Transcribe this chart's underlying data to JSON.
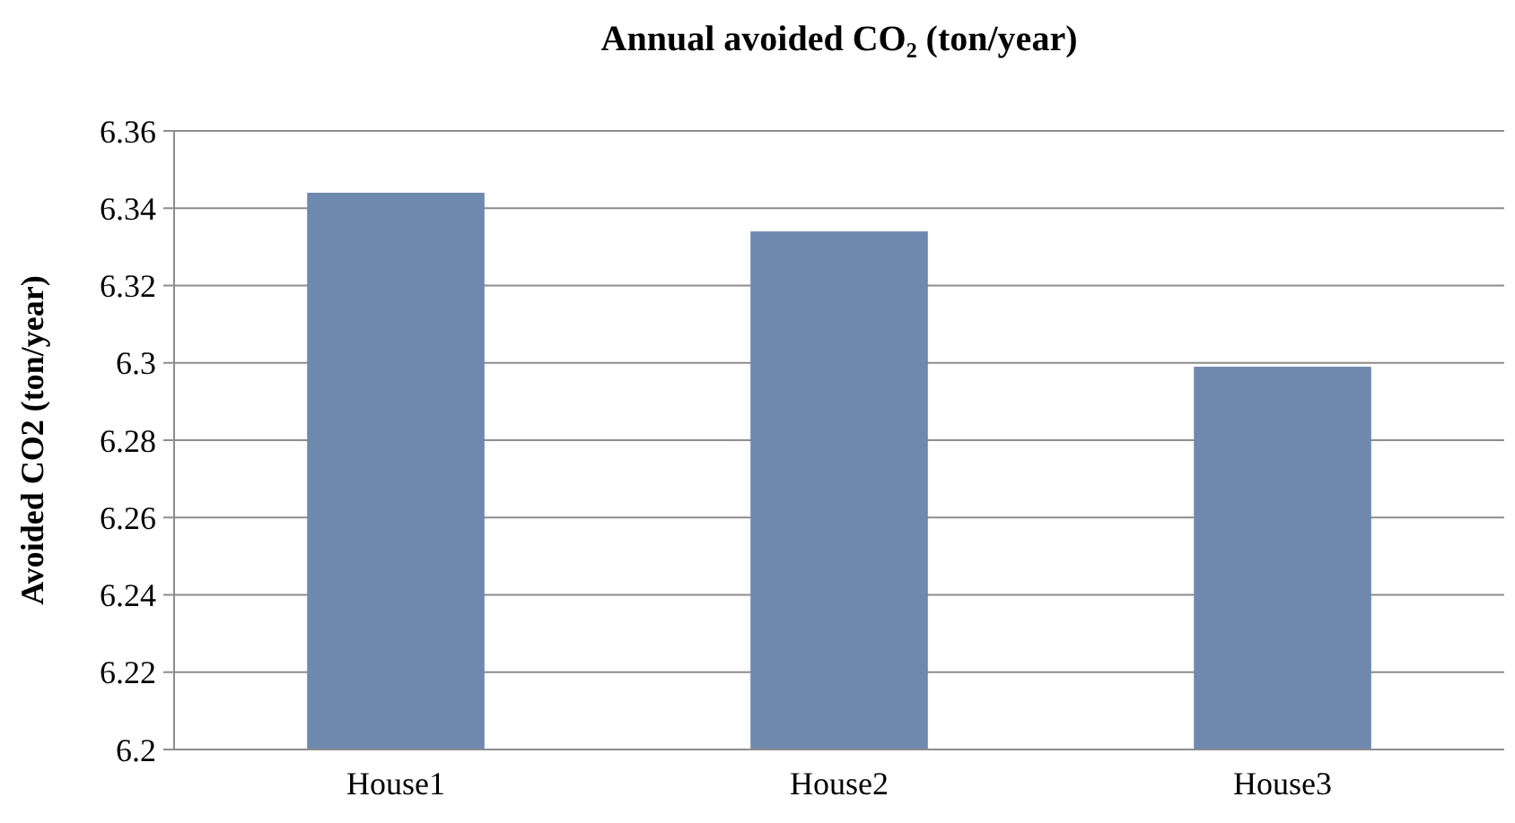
{
  "chart_data": {
    "type": "bar",
    "title": "Annual avoided CO₂ (ton/year)",
    "ylabel": "Avoided CO2 (ton/year)",
    "categories": [
      "House1",
      "House2",
      "House3"
    ],
    "values": [
      6.344,
      6.334,
      6.299
    ],
    "color": "#6e88ae",
    "ylim": [
      6.2,
      6.36
    ],
    "yticks": [
      6.2,
      6.22,
      6.24,
      6.26,
      6.28,
      6.3,
      6.32,
      6.34,
      6.36
    ],
    "grid": "y"
  }
}
